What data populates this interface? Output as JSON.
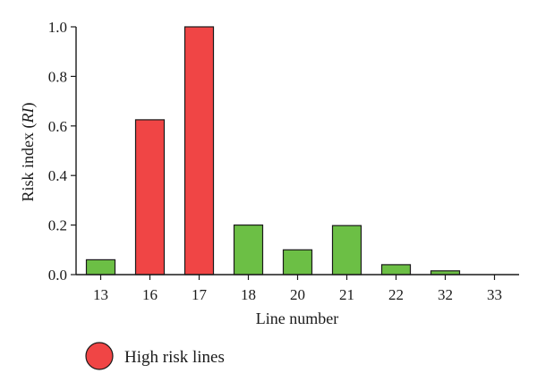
{
  "chart_data": {
    "type": "bar",
    "categories": [
      "13",
      "16",
      "17",
      "18",
      "20",
      "21",
      "22",
      "32",
      "33"
    ],
    "values": [
      0.06,
      0.625,
      1.0,
      0.2,
      0.1,
      0.198,
      0.04,
      0.015,
      0.0
    ],
    "risk_level": [
      "normal",
      "high",
      "high",
      "normal",
      "normal",
      "normal",
      "normal",
      "normal",
      "normal"
    ],
    "colors": {
      "high": "#f04545",
      "normal": "#6cbf45",
      "outline": "#1a1a1a"
    },
    "xlabel": "Line number",
    "ylabel": {
      "text": "Risk index (",
      "italic": "RI",
      "close": ")"
    },
    "ylim": [
      0,
      1.0
    ],
    "yticks": [
      "0.0",
      "0.2",
      "0.4",
      "0.6",
      "0.8",
      "1.0"
    ],
    "grid": false,
    "legend": {
      "placement": "bottom-left",
      "entries": [
        {
          "label": "High risk lines",
          "color": "#f04545",
          "marker": "circle"
        }
      ]
    }
  }
}
